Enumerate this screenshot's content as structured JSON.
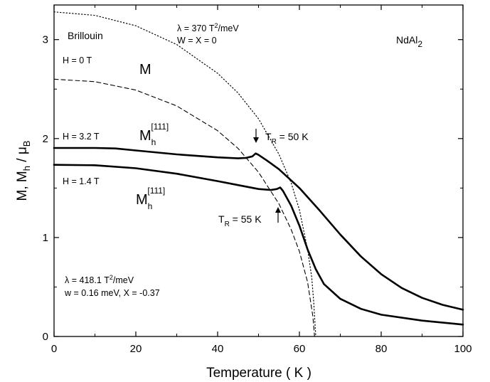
{
  "chart_data": {
    "type": "line",
    "xlabel": "Temperature ( K )",
    "ylabel": {
      "base": "M, M",
      "sub1": "h",
      "mid": " / μ",
      "sub2": "B"
    },
    "xlim": [
      0,
      100
    ],
    "ylim": [
      0,
      3.35
    ],
    "x_ticks": [
      "0",
      "20",
      "40",
      "60",
      "80",
      "100"
    ],
    "y_ticks": [
      "0",
      "1",
      "2",
      "3"
    ],
    "grid": false,
    "series": [
      {
        "style": "dotted",
        "points": [
          [
            0,
            3.28
          ],
          [
            10,
            3.245
          ],
          [
            20,
            3.14
          ],
          [
            30,
            2.95
          ],
          [
            40,
            2.66
          ],
          [
            45,
            2.46
          ],
          [
            50,
            2.2
          ],
          [
            55,
            1.84
          ],
          [
            58,
            1.55
          ],
          [
            60,
            1.28
          ],
          [
            62,
            0.88
          ],
          [
            63,
            0.6
          ],
          [
            63.5,
            0.35
          ],
          [
            64,
            0
          ]
        ]
      },
      {
        "style": "dashed",
        "points": [
          [
            0,
            2.6
          ],
          [
            10,
            2.575
          ],
          [
            20,
            2.49
          ],
          [
            30,
            2.33
          ],
          [
            40,
            2.08
          ],
          [
            45,
            1.9
          ],
          [
            50,
            1.66
          ],
          [
            55,
            1.34
          ],
          [
            58,
            1.08
          ],
          [
            60,
            0.86
          ],
          [
            62,
            0.55
          ],
          [
            63.3,
            0.2
          ],
          [
            63.7,
            0
          ]
        ]
      },
      {
        "style": "solid",
        "field": "H = 3.2 T",
        "points": [
          [
            0,
            1.905
          ],
          [
            10,
            1.905
          ],
          [
            15,
            1.9
          ],
          [
            20,
            1.88
          ],
          [
            30,
            1.84
          ],
          [
            40,
            1.81
          ],
          [
            45,
            1.8
          ],
          [
            47,
            1.805
          ],
          [
            48.5,
            1.82
          ],
          [
            49.3,
            1.85
          ],
          [
            50,
            1.835
          ],
          [
            52,
            1.78
          ],
          [
            55,
            1.69
          ],
          [
            60,
            1.5
          ],
          [
            65,
            1.27
          ],
          [
            70,
            1.03
          ],
          [
            75,
            0.81
          ],
          [
            80,
            0.63
          ],
          [
            85,
            0.49
          ],
          [
            90,
            0.39
          ],
          [
            95,
            0.32
          ],
          [
            100,
            0.27
          ]
        ]
      },
      {
        "style": "solid",
        "field": "H = 1.4 T",
        "points": [
          [
            0,
            1.735
          ],
          [
            10,
            1.73
          ],
          [
            20,
            1.7
          ],
          [
            30,
            1.645
          ],
          [
            40,
            1.57
          ],
          [
            45,
            1.53
          ],
          [
            50,
            1.49
          ],
          [
            53,
            1.48
          ],
          [
            54.5,
            1.49
          ],
          [
            55.3,
            1.505
          ],
          [
            56,
            1.47
          ],
          [
            58,
            1.32
          ],
          [
            60,
            1.12
          ],
          [
            62,
            0.88
          ],
          [
            64,
            0.68
          ],
          [
            66,
            0.53
          ],
          [
            70,
            0.38
          ],
          [
            75,
            0.28
          ],
          [
            80,
            0.22
          ],
          [
            90,
            0.16
          ],
          [
            100,
            0.12
          ]
        ]
      }
    ],
    "annotations": {
      "brillouin": "Brillouin",
      "lambda_top": {
        "pre": "λ = 370 T",
        "sup": "2",
        "post": "/meV"
      },
      "wx_top": "W = X = 0",
      "compound": {
        "base": "NdAl",
        "sub": "2"
      },
      "h0": "H = 0 T",
      "m_label": "M",
      "h32": "H = 3.2 T",
      "h14": "H = 1.4 T",
      "mh_label": {
        "base": "M",
        "sub": "h",
        "sup": "[111]"
      },
      "tr50": {
        "base": "T",
        "sub": "R",
        "post": " = 50 K"
      },
      "tr55": {
        "base": "T",
        "sub": "R",
        "post": " = 55 K"
      },
      "lambda_bottom": {
        "pre": "λ = 418.1  T",
        "sup": "2",
        "post": "/meV"
      },
      "wx_bottom": "w = 0.16 meV,  X = -0.37"
    }
  }
}
